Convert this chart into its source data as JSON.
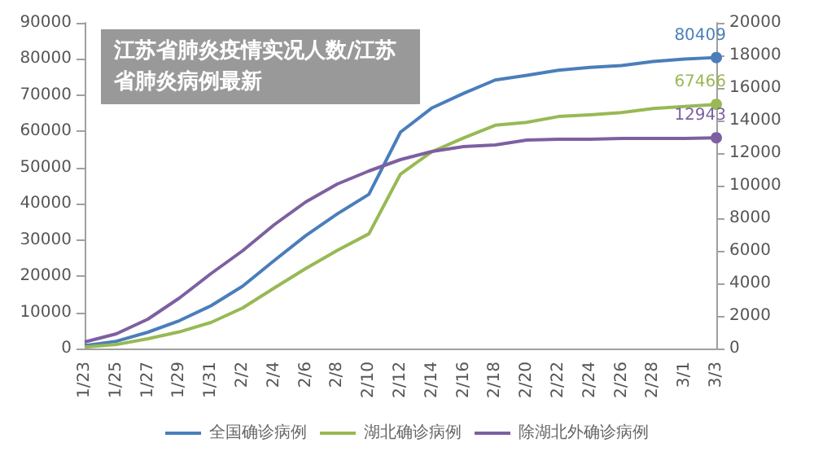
{
  "chart_data": {
    "type": "line",
    "title": "江苏省肺炎疫情实况人数/江苏省肺炎病例最新",
    "categories": [
      "1/23",
      "1/25",
      "1/27",
      "1/29",
      "1/31",
      "2/2",
      "2/4",
      "2/6",
      "2/8",
      "2/10",
      "2/12",
      "2/14",
      "2/16",
      "2/18",
      "2/20",
      "2/22",
      "2/24",
      "2/26",
      "2/28",
      "3/1",
      "3/3"
    ],
    "series": [
      {
        "name": "全国确诊病例",
        "color": "#4a7ebb",
        "values": [
          800,
          2000,
          4500,
          7700,
          11800,
          17200,
          24300,
          31200,
          37200,
          42600,
          59800,
          66500,
          70500,
          74200,
          75500,
          76900,
          77700,
          78200,
          79300,
          80000,
          80409
        ],
        "value_labels": [
          null,
          null,
          null,
          null,
          null,
          null,
          null,
          null,
          null,
          null,
          null,
          null,
          null,
          null,
          null,
          null,
          null,
          null,
          null,
          null,
          "80409"
        ]
      },
      {
        "name": "湖北确诊病例",
        "color": "#98b954",
        "values": [
          400,
          1100,
          2700,
          4600,
          7200,
          11200,
          16700,
          22100,
          27100,
          31700,
          48200,
          54400,
          58200,
          61700,
          62500,
          64100,
          64600,
          65200,
          66300,
          66900,
          67466
        ],
        "value_labels": [
          null,
          null,
          null,
          null,
          null,
          null,
          null,
          null,
          null,
          null,
          null,
          null,
          null,
          null,
          null,
          null,
          null,
          null,
          null,
          null,
          "67466"
        ]
      },
      {
        "name": "除湖北外确诊病例",
        "color": "#7d60a0",
        "axis": "y2",
        "values": [
          400,
          900,
          1800,
          3100,
          4600,
          6000,
          7600,
          9000,
          10100,
          10900,
          11600,
          12100,
          12400,
          12500,
          12800,
          12850,
          12850,
          12900,
          12900,
          12900,
          12943
        ],
        "value_labels": [
          null,
          null,
          null,
          null,
          null,
          null,
          null,
          null,
          null,
          null,
          null,
          null,
          null,
          null,
          null,
          null,
          null,
          null,
          null,
          null,
          "12943"
        ]
      }
    ],
    "ylim": [
      0,
      90000
    ],
    "yticks": [
      0,
      10000,
      20000,
      30000,
      40000,
      50000,
      60000,
      70000,
      80000,
      90000
    ],
    "y2lim": [
      0,
      20000
    ],
    "y2ticks": [
      0,
      2000,
      4000,
      6000,
      8000,
      10000,
      12000,
      14000,
      16000,
      18000,
      20000
    ],
    "legend": "bottom",
    "grid": false,
    "line_style": "solid"
  }
}
